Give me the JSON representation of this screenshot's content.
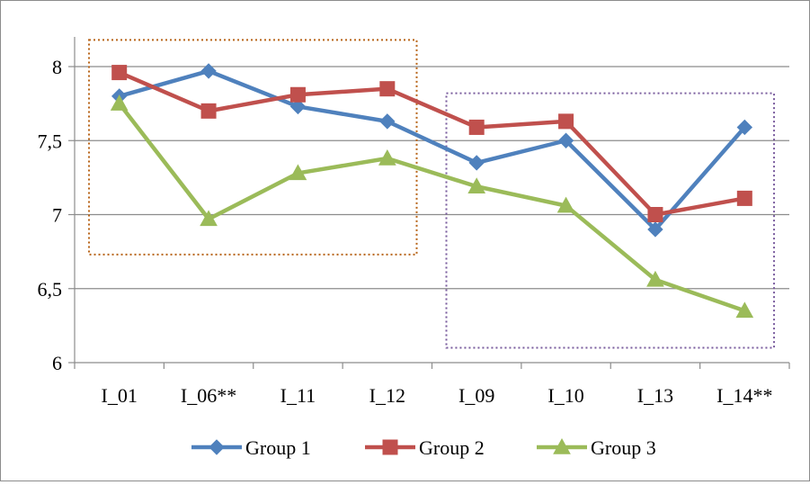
{
  "chart_data": {
    "type": "line",
    "categories": [
      "I_01",
      "I_06**",
      "I_11",
      "I_12",
      "I_09",
      "I_10",
      "I_13",
      "I_14**"
    ],
    "series": [
      {
        "name": "Group 1",
        "values": [
          7.8,
          7.97,
          7.73,
          7.63,
          7.35,
          7.5,
          6.9,
          7.59
        ],
        "color": "#4f81bd",
        "marker": "diamond"
      },
      {
        "name": "Group 2",
        "values": [
          7.96,
          7.7,
          7.81,
          7.85,
          7.59,
          7.63,
          7.0,
          7.11
        ],
        "color": "#c0504d",
        "marker": "square"
      },
      {
        "name": "Group 3",
        "values": [
          7.75,
          6.97,
          7.28,
          7.38,
          7.19,
          7.06,
          6.56,
          6.35
        ],
        "color": "#9bbb59",
        "marker": "triangle"
      }
    ],
    "ylim": [
      6,
      8
    ],
    "yticks": [
      "6",
      "6,5",
      "7",
      "7,5",
      "8"
    ],
    "ytick_values": [
      6,
      6.5,
      7,
      7.5,
      8
    ],
    "grid": true,
    "legend": "bottom",
    "highlight_boxes": [
      {
        "from_category": "I_01",
        "to_category": "I_12",
        "y_range": [
          6.73,
          8.18
        ],
        "color": "#b8651a",
        "style": "dotted"
      },
      {
        "from_category": "I_09",
        "to_category": "I_14**",
        "y_range": [
          6.1,
          7.82
        ],
        "color": "#7a5c9e",
        "style": "dotted"
      }
    ]
  }
}
